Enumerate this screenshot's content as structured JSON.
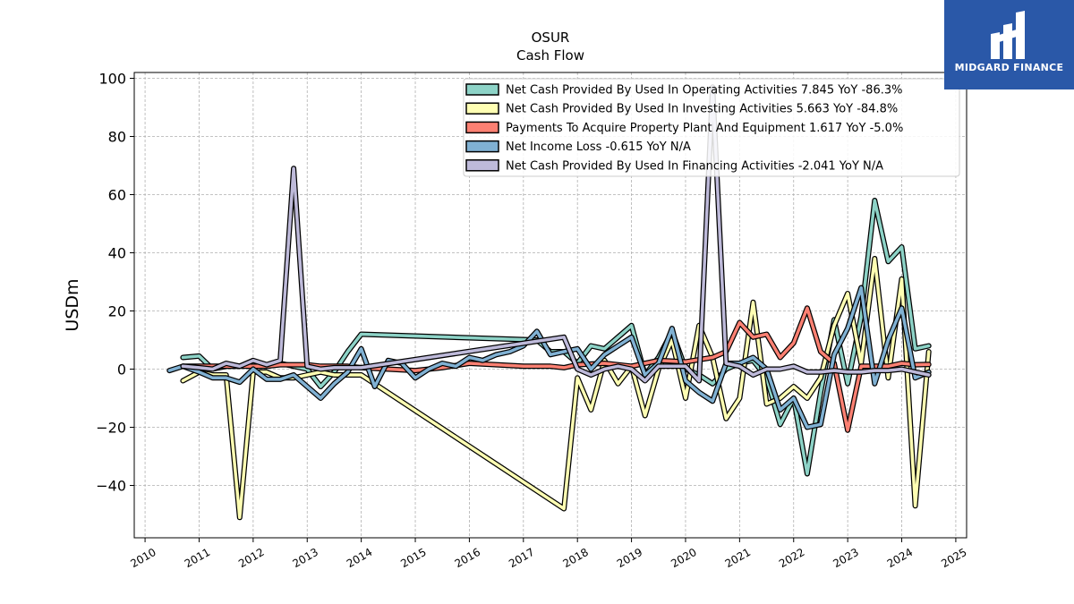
{
  "logo": {
    "text": "MIDGARD FINANCE",
    "color": "#2a58a8"
  },
  "chart_data": {
    "type": "line",
    "title": "OSUR",
    "subtitle": "Cash Flow",
    "xlabel": "",
    "ylabel": "USDm",
    "xlim": [
      2009.8,
      2025.2
    ],
    "ylim": [
      -58,
      102
    ],
    "y_ticks": [
      -40,
      -20,
      0,
      20,
      40,
      60,
      80,
      100
    ],
    "x_ticks": [
      2010,
      2011,
      2012,
      2013,
      2014,
      2015,
      2016,
      2017,
      2018,
      2019,
      2020,
      2021,
      2022,
      2023,
      2024,
      2025
    ],
    "grid": true,
    "legend_position": "top-right",
    "series": [
      {
        "name": "Net Cash Provided By Used In Operating Activities  7.845 YoY -86.3%",
        "color": "#8dd3c7",
        "points": [
          [
            2010.7,
            4
          ],
          [
            2011.0,
            4.5
          ],
          [
            2011.25,
            0
          ],
          [
            2011.5,
            1
          ],
          [
            2011.75,
            1
          ],
          [
            2012.0,
            2
          ],
          [
            2012.25,
            1
          ],
          [
            2012.5,
            2
          ],
          [
            2012.75,
            1
          ],
          [
            2013.0,
            0
          ],
          [
            2013.25,
            -6
          ],
          [
            2013.5,
            -1
          ],
          [
            2013.75,
            6
          ],
          [
            2014.0,
            12
          ],
          [
            2017.25,
            10
          ],
          [
            2017.5,
            6
          ],
          [
            2017.75,
            6
          ],
          [
            2018.0,
            2
          ],
          [
            2018.25,
            8
          ],
          [
            2018.5,
            7
          ],
          [
            2018.75,
            11
          ],
          [
            2019.0,
            15
          ],
          [
            2019.25,
            -2
          ],
          [
            2019.5,
            4
          ],
          [
            2019.75,
            13
          ],
          [
            2020.0,
            0
          ],
          [
            2020.25,
            -2
          ],
          [
            2020.5,
            -5
          ],
          [
            2020.75,
            0
          ],
          [
            2021.0,
            2
          ],
          [
            2021.25,
            3
          ],
          [
            2021.5,
            -3
          ],
          [
            2021.75,
            -19
          ],
          [
            2022.0,
            -10
          ],
          [
            2022.25,
            -36
          ],
          [
            2022.5,
            -8
          ],
          [
            2022.75,
            17
          ],
          [
            2023.0,
            -5
          ],
          [
            2023.25,
            18
          ],
          [
            2023.5,
            58
          ],
          [
            2023.75,
            37
          ],
          [
            2024.0,
            42
          ],
          [
            2024.25,
            7
          ],
          [
            2024.5,
            8
          ]
        ]
      },
      {
        "name": "Net Cash Provided By Used In Investing Activities  5.663 YoY -84.8%",
        "color": "#ffffb3",
        "points": [
          [
            2010.7,
            -4
          ],
          [
            2011.0,
            -1
          ],
          [
            2011.25,
            -2
          ],
          [
            2011.5,
            -2
          ],
          [
            2011.75,
            -51
          ],
          [
            2012.0,
            -1
          ],
          [
            2012.25,
            -1
          ],
          [
            2012.5,
            -3
          ],
          [
            2012.75,
            -3
          ],
          [
            2013.0,
            -2
          ],
          [
            2013.25,
            -1
          ],
          [
            2013.5,
            -2
          ],
          [
            2013.75,
            -2
          ],
          [
            2014.0,
            -2
          ],
          [
            2017.75,
            -48
          ],
          [
            2018.0,
            -3
          ],
          [
            2018.25,
            -14
          ],
          [
            2018.5,
            3
          ],
          [
            2018.75,
            -5
          ],
          [
            2019.0,
            1
          ],
          [
            2019.25,
            -16
          ],
          [
            2019.5,
            0
          ],
          [
            2019.75,
            10
          ],
          [
            2020.0,
            -10
          ],
          [
            2020.25,
            15
          ],
          [
            2020.5,
            4
          ],
          [
            2020.75,
            -17
          ],
          [
            2021.0,
            -10
          ],
          [
            2021.25,
            23
          ],
          [
            2021.5,
            -12
          ],
          [
            2021.75,
            -10
          ],
          [
            2022.0,
            -6
          ],
          [
            2022.25,
            -10
          ],
          [
            2022.5,
            -3
          ],
          [
            2022.75,
            15
          ],
          [
            2023.0,
            26
          ],
          [
            2023.25,
            2
          ],
          [
            2023.5,
            38
          ],
          [
            2023.75,
            -3
          ],
          [
            2024.0,
            31
          ],
          [
            2024.25,
            -47
          ],
          [
            2024.5,
            6
          ]
        ]
      },
      {
        "name": "Payments To Acquire Property Plant And Equipment  1.617 YoY -5.0%",
        "color": "#fb8072",
        "points": [
          [
            2010.7,
            1
          ],
          [
            2011.0,
            1
          ],
          [
            2011.25,
            1
          ],
          [
            2011.5,
            1
          ],
          [
            2011.75,
            1
          ],
          [
            2012.0,
            1
          ],
          [
            2012.25,
            1
          ],
          [
            2012.5,
            1.5
          ],
          [
            2012.75,
            1.5
          ],
          [
            2013.0,
            1.5
          ],
          [
            2013.25,
            1
          ],
          [
            2013.5,
            1
          ],
          [
            2013.75,
            1
          ],
          [
            2014.0,
            0.5
          ],
          [
            2014.5,
            0
          ],
          [
            2015.0,
            -0.5
          ],
          [
            2015.5,
            0.5
          ],
          [
            2016.0,
            2
          ],
          [
            2016.5,
            1.5
          ],
          [
            2017.0,
            1
          ],
          [
            2017.5,
            1
          ],
          [
            2017.75,
            0.5
          ],
          [
            2018.0,
            1.5
          ],
          [
            2018.5,
            2
          ],
          [
            2019.0,
            1
          ],
          [
            2019.5,
            3
          ],
          [
            2020.0,
            2.5
          ],
          [
            2020.5,
            4
          ],
          [
            2020.75,
            6
          ],
          [
            2021.0,
            16
          ],
          [
            2021.25,
            11
          ],
          [
            2021.5,
            12
          ],
          [
            2021.75,
            4
          ],
          [
            2022.0,
            9
          ],
          [
            2022.25,
            21
          ],
          [
            2022.5,
            6
          ],
          [
            2022.75,
            2
          ],
          [
            2023.0,
            -21
          ],
          [
            2023.25,
            1
          ],
          [
            2023.5,
            1
          ],
          [
            2023.75,
            1
          ],
          [
            2024.0,
            2
          ],
          [
            2024.25,
            1.5
          ],
          [
            2024.5,
            1.6
          ]
        ]
      },
      {
        "name": "Net Income Loss  -0.615 YoY N/A",
        "color": "#80b1d3",
        "points": [
          [
            2010.45,
            -0.5
          ],
          [
            2010.7,
            1
          ],
          [
            2011.0,
            -1
          ],
          [
            2011.25,
            -3
          ],
          [
            2011.5,
            -3
          ],
          [
            2011.75,
            -4.5
          ],
          [
            2012.0,
            0
          ],
          [
            2012.25,
            -3.5
          ],
          [
            2012.5,
            -3.5
          ],
          [
            2012.75,
            -2
          ],
          [
            2013.0,
            -6
          ],
          [
            2013.25,
            -10
          ],
          [
            2013.5,
            -5
          ],
          [
            2013.75,
            -1
          ],
          [
            2014.0,
            7
          ],
          [
            2014.25,
            -6
          ],
          [
            2014.5,
            3
          ],
          [
            2014.75,
            2
          ],
          [
            2015.0,
            -3
          ],
          [
            2015.25,
            0
          ],
          [
            2015.5,
            2
          ],
          [
            2015.75,
            1
          ],
          [
            2016.0,
            4
          ],
          [
            2016.25,
            3
          ],
          [
            2016.5,
            5
          ],
          [
            2016.75,
            6
          ],
          [
            2017.0,
            8
          ],
          [
            2017.25,
            13
          ],
          [
            2017.5,
            5
          ],
          [
            2017.75,
            6
          ],
          [
            2018.0,
            7
          ],
          [
            2018.25,
            0
          ],
          [
            2018.5,
            5
          ],
          [
            2018.75,
            8
          ],
          [
            2019.0,
            11
          ],
          [
            2019.25,
            -2
          ],
          [
            2019.5,
            2
          ],
          [
            2019.75,
            14
          ],
          [
            2020.0,
            -4
          ],
          [
            2020.25,
            -8
          ],
          [
            2020.5,
            -11
          ],
          [
            2020.75,
            2
          ],
          [
            2021.0,
            2
          ],
          [
            2021.25,
            4
          ],
          [
            2021.5,
            0
          ],
          [
            2021.75,
            -14
          ],
          [
            2022.0,
            -10
          ],
          [
            2022.25,
            -20
          ],
          [
            2022.5,
            -19
          ],
          [
            2022.75,
            5
          ],
          [
            2023.0,
            14
          ],
          [
            2023.25,
            28
          ],
          [
            2023.5,
            -5
          ],
          [
            2023.75,
            10
          ],
          [
            2024.0,
            21
          ],
          [
            2024.25,
            -3
          ],
          [
            2024.5,
            -1
          ]
        ]
      },
      {
        "name": "Net Cash Provided By Used In Financing Activities  -2.041 YoY N/A",
        "color": "#bebada",
        "points": [
          [
            2010.7,
            1
          ],
          [
            2011.0,
            0.5
          ],
          [
            2011.25,
            0
          ],
          [
            2011.5,
            2
          ],
          [
            2011.75,
            1
          ],
          [
            2012.0,
            3
          ],
          [
            2012.25,
            1.5
          ],
          [
            2012.5,
            3
          ],
          [
            2012.75,
            69
          ],
          [
            2013.0,
            1
          ],
          [
            2013.25,
            0
          ],
          [
            2013.5,
            0.5
          ],
          [
            2013.75,
            0.5
          ],
          [
            2014.0,
            0.5
          ],
          [
            2017.75,
            11
          ],
          [
            2018.0,
            0
          ],
          [
            2018.25,
            -2
          ],
          [
            2018.5,
            0
          ],
          [
            2018.75,
            1
          ],
          [
            2019.0,
            0
          ],
          [
            2019.25,
            -4
          ],
          [
            2019.5,
            1
          ],
          [
            2019.75,
            1
          ],
          [
            2020.0,
            1
          ],
          [
            2020.25,
            -4
          ],
          [
            2020.5,
            97
          ],
          [
            2020.75,
            2
          ],
          [
            2021.0,
            1
          ],
          [
            2021.25,
            -2
          ],
          [
            2021.5,
            0
          ],
          [
            2021.75,
            0
          ],
          [
            2022.0,
            1
          ],
          [
            2022.25,
            -1
          ],
          [
            2022.5,
            -1
          ],
          [
            2022.75,
            -0.5
          ],
          [
            2023.0,
            -1
          ],
          [
            2023.25,
            -1
          ],
          [
            2023.5,
            -0.5
          ],
          [
            2023.75,
            -0.5
          ],
          [
            2024.0,
            0
          ],
          [
            2024.25,
            -1
          ],
          [
            2024.5,
            -2
          ]
        ]
      }
    ]
  }
}
